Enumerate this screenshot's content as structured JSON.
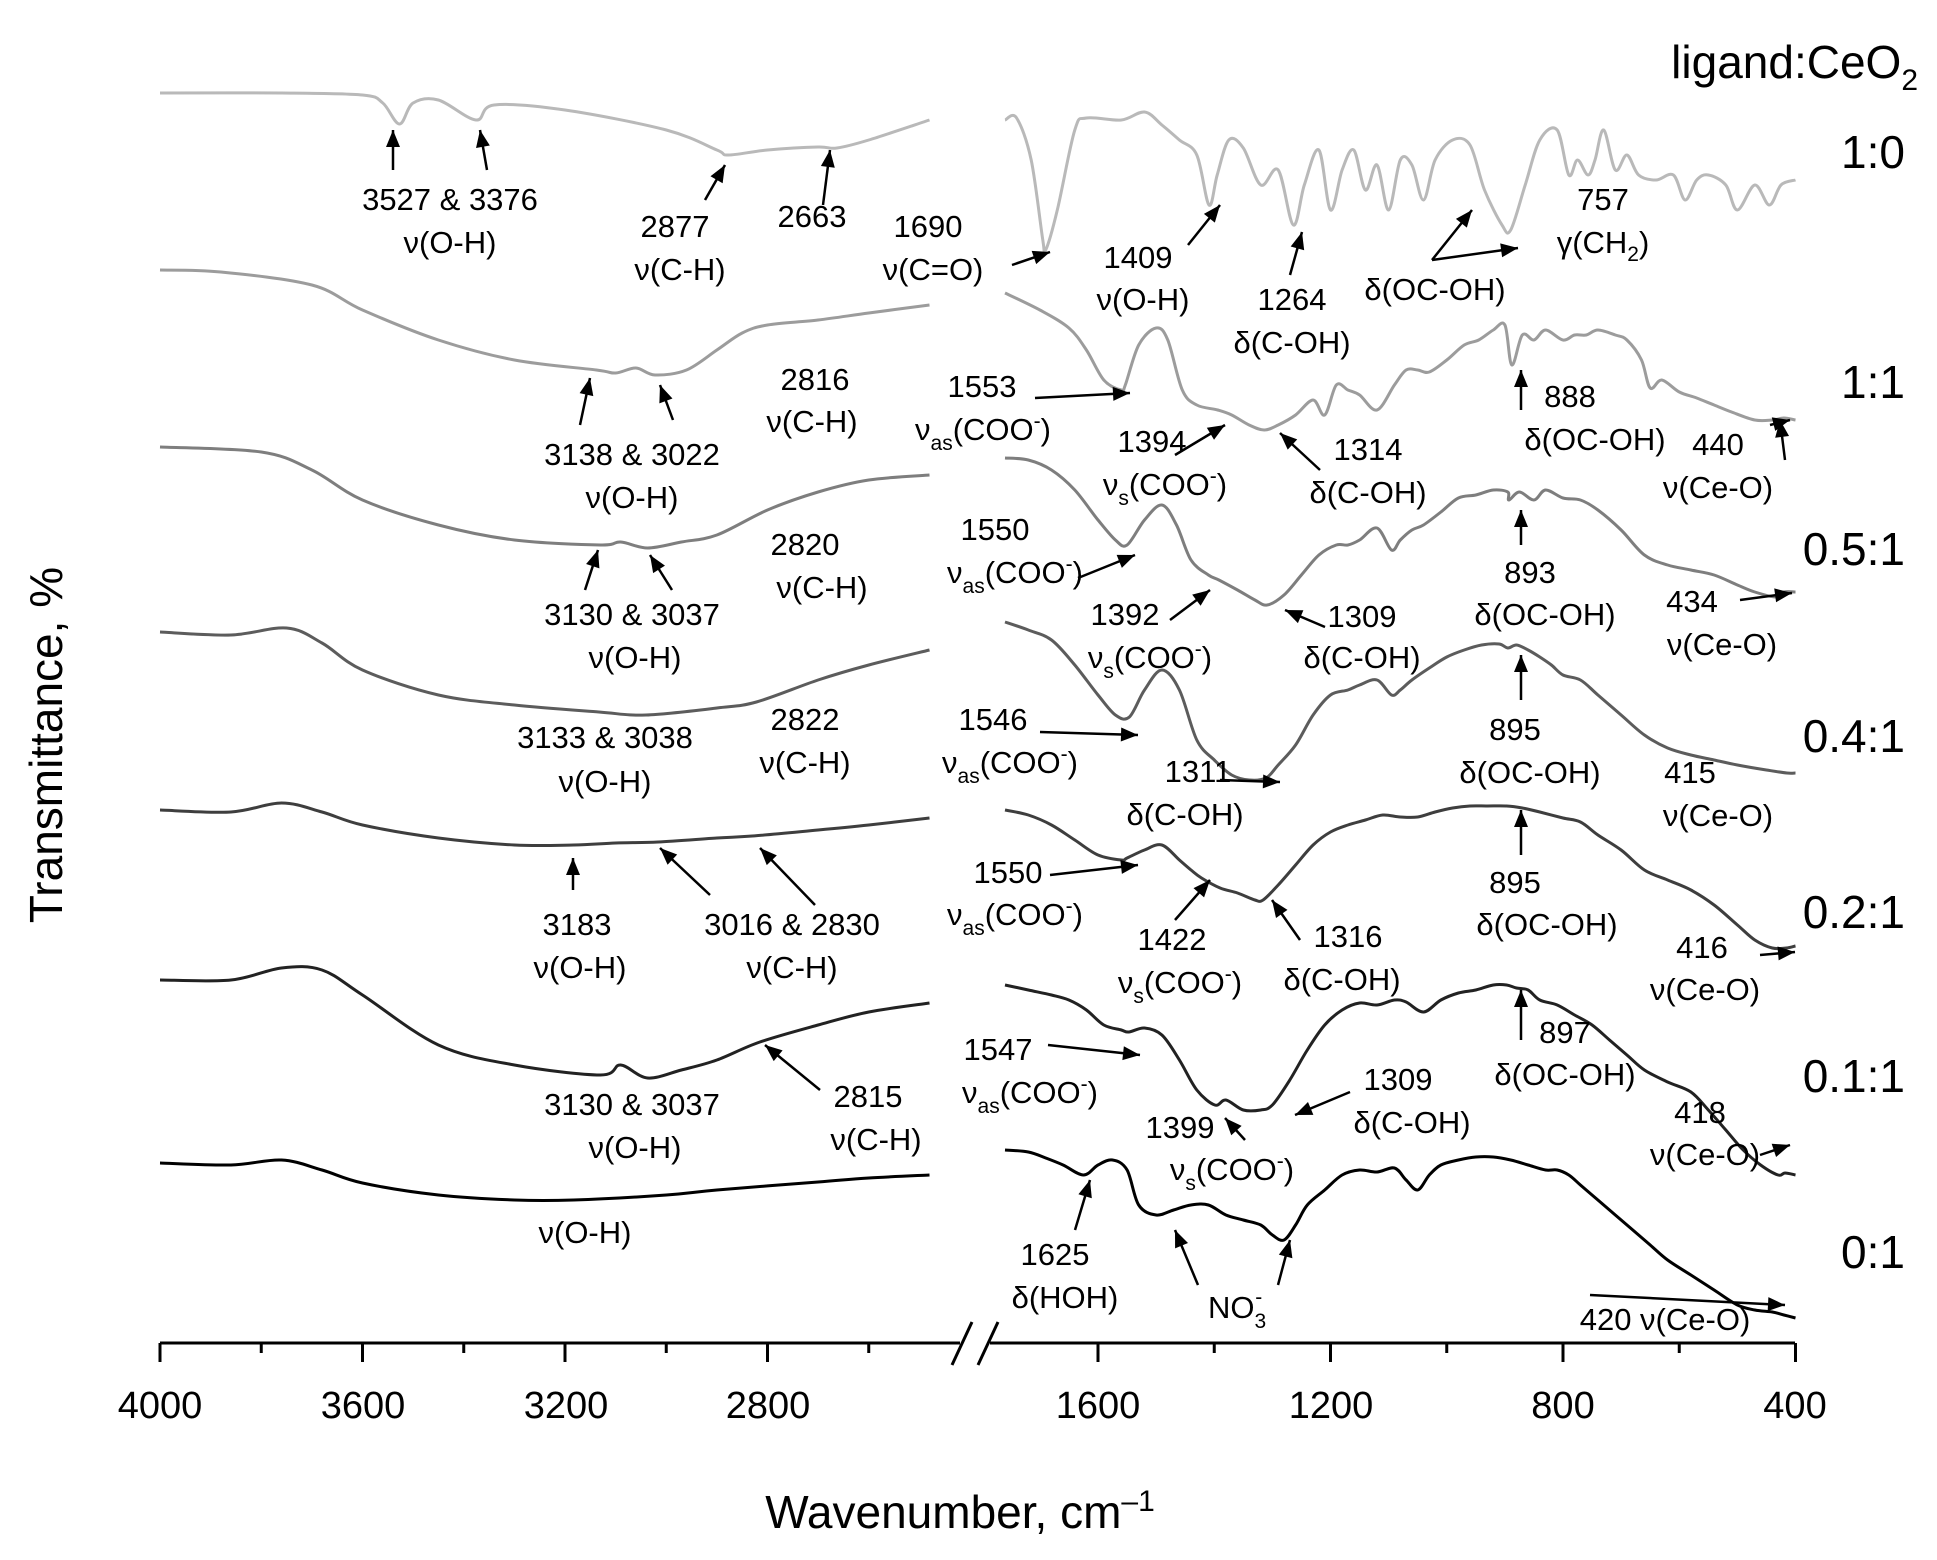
{
  "chart_data": {
    "type": "line",
    "xlabel": "Wavenumber, cm",
    "xlabel_sup": "–1",
    "ylabel": "Transmittance, %",
    "legend_title": "ligand:CeO",
    "legend_title_sub": "2",
    "x_reversed": true,
    "x_axis_break": [
      2480,
      1760
    ],
    "x_segments": [
      [
        4000,
        2480
      ],
      [
        1760,
        400
      ]
    ],
    "xticks_major": [
      "4000",
      "3600",
      "3200",
      "2800",
      "1600",
      "1200",
      "800",
      "400"
    ],
    "y_ticks": "none",
    "grid": false,
    "series": [
      {
        "name": "1:0",
        "color": "#b9b9b9"
      },
      {
        "name": "1:1",
        "color": "#9c9c9c"
      },
      {
        "name": "0.5:1",
        "color": "#7e7e7e"
      },
      {
        "name": "0.4:1",
        "color": "#5c5c5c"
      },
      {
        "name": "0.2:1",
        "color": "#3e3e3e"
      },
      {
        "name": "0.1:1",
        "color": "#222222"
      },
      {
        "name": "0:1",
        "color": "#000000"
      }
    ],
    "annotations": {
      "a1_3527": "3527 & 3376",
      "a1_3527_b": "ν(O-H)",
      "a1_2877": "2877",
      "a1_2877_b": "ν(C-H)",
      "a1_2663": "2663",
      "a1_1690": "1690",
      "a1_1690_b": "ν(C=O)",
      "a1_1409": "1409",
      "a1_1409_b": "ν(O-H)",
      "a1_1264": "1264",
      "a1_1264_b": "δ(C-OH)",
      "a1_ocoh": "δ(OC-OH)",
      "a1_757": "757",
      "a1_757_b": "γ(CH",
      "a1_757_sub": "2",
      "a2_3138": "3138 & 3022",
      "a2_3138_b": "ν(O-H)",
      "a2_2816": "2816",
      "a2_2816_b": "ν(C-H)",
      "a2_1553": "1553",
      "a2_1553_nu": "ν",
      "a2_1553_sub": "as",
      "a2_1553_b": "(COO",
      "a2_1553_sup": "-",
      "a2_1553_c": ")",
      "a2_1394": "1394",
      "a2_1394_nu": "ν",
      "a2_1394_sub": "s",
      "a2_1394_b": "(COO",
      "a2_1394_sup": "-",
      "a2_1394_c": ")",
      "a2_1314": "1314",
      "a2_1314_b": "δ(C-OH)",
      "a2_888": "888",
      "a2_888_b": "δ(OC-OH)",
      "a2_440": "440",
      "a2_440_b": "ν(Ce-O)",
      "a3_3130": "3130 & 3037",
      "a3_3130_b": "ν(O-H)",
      "a3_2820": "2820",
      "a3_2820_b": "ν(C-H)",
      "a3_1550": "1550",
      "a3_1550_nu": "ν",
      "a3_1550_sub": "as",
      "a3_1550_b": "(COO",
      "a3_1550_sup": "-",
      "a3_1550_c": ")",
      "a3_1392": "1392",
      "a3_1392_nu": "ν",
      "a3_1392_sub": "s",
      "a3_1392_b": "(COO",
      "a3_1392_sup": "-",
      "a3_1392_c": ")",
      "a3_1309": "1309",
      "a3_1309_b": "δ(C-OH)",
      "a3_893": "893",
      "a3_893_b": "δ(OC-OH)",
      "a3_434": "434",
      "a3_434_b": "ν(Ce-O)",
      "a4_3133": "3133 & 3038",
      "a4_3133_b": "ν(O-H)",
      "a4_2822": "2822",
      "a4_2822_b": "ν(C-H)",
      "a4_1546": "1546",
      "a4_1546_nu": "ν",
      "a4_1546_sub": "as",
      "a4_1546_b": "(COO",
      "a4_1546_sup": "-",
      "a4_1546_c": ")",
      "a4_1311": "1311",
      "a4_1311_b": "δ(C-OH)",
      "a4_895": "895",
      "a4_895_b": "δ(OC-OH)",
      "a4_415": "415",
      "a4_415_b": "ν(Ce-O)",
      "a5_3183": "3183",
      "a5_3183_b": "ν(O-H)",
      "a5_3016": "3016 & 2830",
      "a5_3016_b": "ν(C-H)",
      "a5_1550": "1550",
      "a5_1550_nu": "ν",
      "a5_1550_sub": "as",
      "a5_1550_b": "(COO",
      "a5_1550_sup": "-",
      "a5_1550_c": ")",
      "a5_1422": "1422",
      "a5_1422_nu": "ν",
      "a5_1422_sub": "s",
      "a5_1422_b": "(COO",
      "a5_1422_sup": "-",
      "a5_1422_c": ")",
      "a5_1316": "1316",
      "a5_1316_b": "δ(C-OH)",
      "a5_895": "895",
      "a5_895_b": "δ(OC-OH)",
      "a5_416": "416",
      "a5_416_b": "ν(Ce-O)",
      "a6_3130": "3130 & 3037",
      "a6_3130_b": "ν(O-H)",
      "a6_2815": "2815",
      "a6_2815_b": "ν(C-H)",
      "a6_1547": "1547",
      "a6_1547_nu": "ν",
      "a6_1547_sub": "as",
      "a6_1547_b": "(COO",
      "a6_1547_sup": "-",
      "a6_1547_c": ")",
      "a6_1399": "1399",
      "a6_1399_nu": "ν",
      "a6_1399_sub": "s",
      "a6_1399_b": "(COO",
      "a6_1399_sup": "-",
      "a6_1399_c": ")",
      "a6_1309": "1309",
      "a6_1309_b": "δ(C-OH)",
      "a6_897": "897",
      "a6_897_b": "δ(OC-OH)",
      "a6_418": "418",
      "a6_418_b": "ν(Ce-O)",
      "a7_oh": "ν(O-H)",
      "a7_1625": "1625",
      "a7_1625_b": "δ(HOH)",
      "a7_no3": "NO",
      "a7_no3_sub": "3",
      "a7_no3_sup": "-",
      "a7_420": "420 ν(Ce-O)"
    }
  }
}
